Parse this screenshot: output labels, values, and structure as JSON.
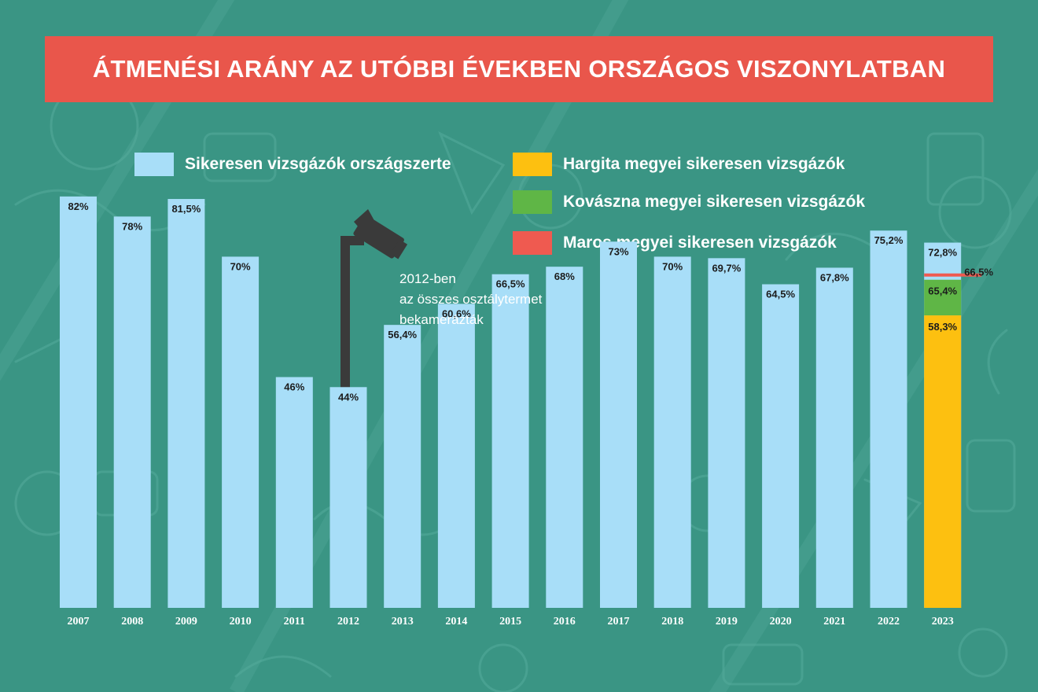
{
  "title": "ÁTMENÉSI ARÁNY AZ UTÓBBI ÉVEKBEN ORSZÁGOS VISZONYLATBAN",
  "legend": [
    {
      "label": "Sikeresen vizsgázók országszerte",
      "color": "#a8def8"
    },
    {
      "label": "Hargita megyei sikeresen vizsgázók",
      "color": "#fdc010"
    },
    {
      "label": "Kovászna megyei sikeresen vizsgázók",
      "color": "#5fb646"
    },
    {
      "label": "Maros megyei sikeresen vizsgázók",
      "color": "#ef5a50"
    }
  ],
  "annotation": {
    "lines": [
      "2012-ben",
      "az összes osztálytermet",
      "bekamerázták"
    ],
    "icon": "security-camera-icon"
  },
  "colors": {
    "background": "#3a9584",
    "banner": "#e9564b",
    "national": "#a8def8",
    "hargita": "#fdc010",
    "kovaszna": "#5fb646",
    "maros": "#ef5a50",
    "camera": "#3a3a3a"
  },
  "chart_data": {
    "type": "bar",
    "categories": [
      "2007",
      "2008",
      "2009",
      "2010",
      "2011",
      "2012",
      "2013",
      "2014",
      "2015",
      "2016",
      "2017",
      "2018",
      "2019",
      "2020",
      "2021",
      "2022",
      "2023"
    ],
    "series": [
      {
        "name": "Sikeresen vizsgázók országszerte",
        "values": [
          82,
          78,
          81.5,
          70,
          46,
          44,
          56.4,
          60.6,
          66.5,
          68,
          73,
          70,
          69.7,
          64.5,
          67.8,
          75.2,
          72.8
        ]
      },
      {
        "name": "Hargita megyei sikeresen vizsgázók",
        "values": [
          null,
          null,
          null,
          null,
          null,
          null,
          null,
          null,
          null,
          null,
          null,
          null,
          null,
          null,
          null,
          null,
          58.3
        ]
      },
      {
        "name": "Kovászna megyei sikeresen vizsgázók",
        "values": [
          null,
          null,
          null,
          null,
          null,
          null,
          null,
          null,
          null,
          null,
          null,
          null,
          null,
          null,
          null,
          null,
          65.4
        ]
      },
      {
        "name": "Maros megyei sikeresen vizsgázók",
        "values": [
          null,
          null,
          null,
          null,
          null,
          null,
          null,
          null,
          null,
          null,
          null,
          null,
          null,
          null,
          null,
          null,
          66.5
        ]
      }
    ],
    "value_labels": [
      "82%",
      "78%",
      "81,5%",
      "70%",
      "46%",
      "44%",
      "56,4%",
      "60,6%",
      "66,5%",
      "68%",
      "73%",
      "70%",
      "69,7%",
      "64,5%",
      "67,8%",
      "75,2%",
      "72,8%"
    ],
    "county_labels_2023": {
      "hargita": "58,3%",
      "kovaszna": "65,4%",
      "maros": "66,5%"
    },
    "ylim": [
      0,
      100
    ],
    "grid": false,
    "legend_position": "top"
  }
}
